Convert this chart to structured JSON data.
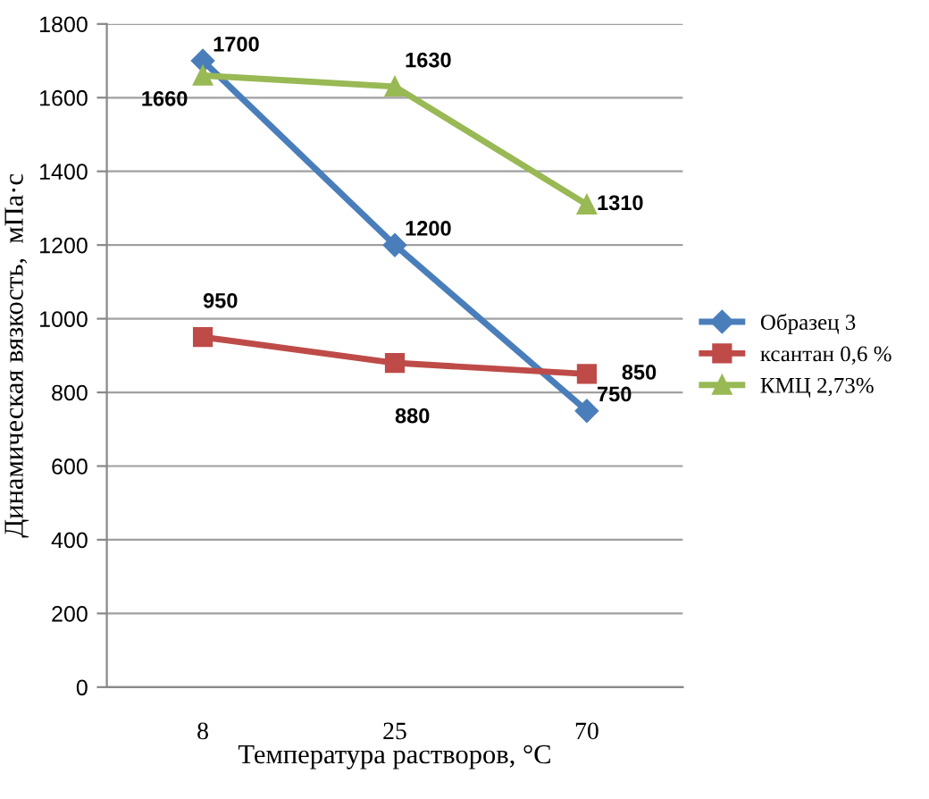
{
  "chart_data": {
    "type": "line",
    "xlabel": "Температура растворов, °С",
    "ylabel": "Динамическая вязкость,  мПа·с",
    "categories": [
      "8",
      "25",
      "70"
    ],
    "series": [
      {
        "name": "Образец 3",
        "color": "#4a7ebb",
        "marker": "diamond",
        "values": [
          1700,
          1200,
          750
        ]
      },
      {
        "name": "ксантан 0,6 %",
        "color": "#be4b48",
        "marker": "square",
        "values": [
          950,
          880,
          850
        ]
      },
      {
        "name": "КМЦ 2,73%",
        "color": "#98b954",
        "marker": "triangle",
        "values": [
          1660,
          1630,
          1310
        ]
      }
    ],
    "ylim": [
      0,
      1800
    ],
    "yticks": [
      0,
      200,
      400,
      600,
      800,
      1000,
      1200,
      1400,
      1600,
      1800
    ],
    "grid": "y",
    "legend": "right",
    "data_labels": true,
    "line_style": "solid"
  }
}
